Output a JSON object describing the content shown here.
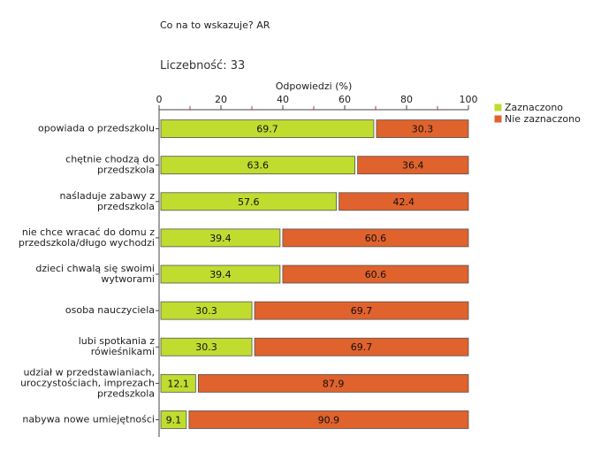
{
  "header": {
    "title": "Co na to wskazuje? AR",
    "count_label": "Liczebność:",
    "count_value": "33"
  },
  "colors": {
    "selected": "#bfdc2f",
    "not_selected": "#e0622c",
    "bar_border": "#555555"
  },
  "chart_data": {
    "type": "bar",
    "orientation": "horizontal",
    "stacked": true,
    "xlabel": "Odpowiedzi (%)",
    "xlim": [
      0,
      100
    ],
    "xticks": [
      0,
      20,
      40,
      60,
      80,
      100
    ],
    "categories": [
      [
        "opowiada o przedszkolu"
      ],
      [
        "chętnie chodzą do",
        "przedszkola"
      ],
      [
        "naśladuje zabawy z",
        "przedszkola"
      ],
      [
        "nie chce wracać do domu z",
        "przedszkola/długo wychodzi"
      ],
      [
        "dzieci chwalą się swoimi",
        "wytworami"
      ],
      [
        "osoba nauczyciela"
      ],
      [
        "lubi spotkania z",
        "rówieśnikami"
      ],
      [
        "udział w przedstawianiach,",
        "uroczystościach, imprezach",
        "przedszkola"
      ],
      [
        "nabywa nowe umiejętności"
      ]
    ],
    "series": [
      {
        "name": "Zaznaczono",
        "values": [
          69.7,
          63.6,
          57.6,
          39.4,
          39.4,
          30.3,
          30.3,
          12.1,
          9.1
        ]
      },
      {
        "name": "Nie zaznaczono",
        "values": [
          30.3,
          36.4,
          42.4,
          60.6,
          60.6,
          69.7,
          69.7,
          87.9,
          90.9
        ]
      }
    ],
    "legend_position": "top-right"
  }
}
